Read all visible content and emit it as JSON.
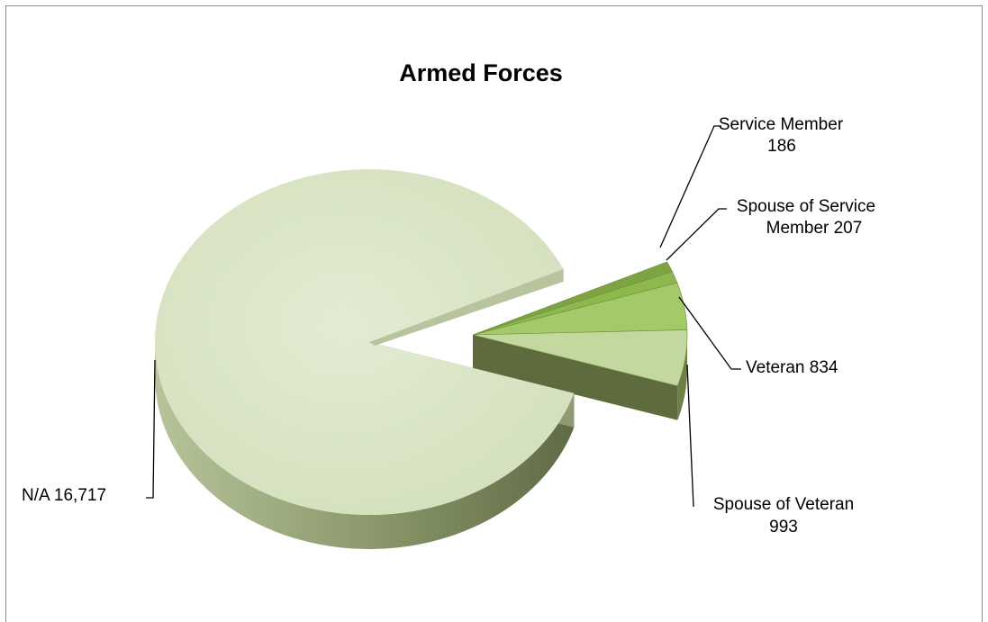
{
  "chart_data": {
    "type": "pie",
    "title": "Armed Forces",
    "slices": [
      {
        "label": "N/A",
        "value": 16717,
        "value_text": "16,717",
        "color": "#d9e5c4",
        "exploded": false
      },
      {
        "label": "Service Member",
        "value": 186,
        "value_text": "186",
        "color": "#7da342",
        "exploded": true
      },
      {
        "label": "Spouse of Service Member",
        "value": 207,
        "value_text": "207",
        "color": "#8db84d",
        "exploded": true
      },
      {
        "label": "Veteran",
        "value": 834,
        "value_text": "834",
        "color": "#a3c968",
        "exploded": true
      },
      {
        "label": "Spouse of Veteran",
        "value": 993,
        "value_text": "993",
        "color": "#c2d89f",
        "exploded": true
      }
    ],
    "labels": {
      "na_line1": "N/A  16,717",
      "service_member_line1": "Service Member",
      "service_member_line2": "186",
      "spouse_service_line1": "Spouse of Service",
      "spouse_service_line2": "Member  207",
      "veteran_line1": "Veteran  834",
      "spouse_veteran_line1": "Spouse of Veteran",
      "spouse_veteran_line2": "993"
    },
    "legend": "none",
    "style": "3d-exploded"
  }
}
